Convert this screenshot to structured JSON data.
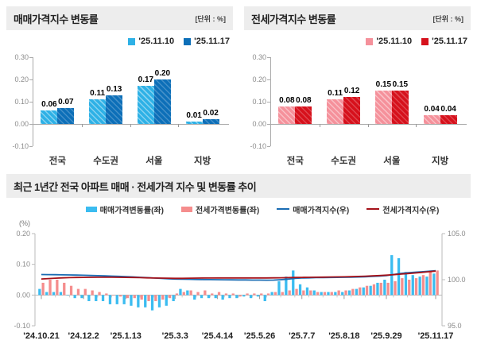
{
  "panels": {
    "sales": {
      "title": "매매가격지수 변동률",
      "unit": "[단위 : %]",
      "legend": [
        {
          "label": "'25.11.10",
          "color": "#2eb1e6"
        },
        {
          "label": "'25.11.17",
          "color": "#0d6fb8"
        }
      ]
    },
    "jeonse": {
      "title": "전세가격지수 변동률",
      "unit": "[단위 : %]",
      "legend": [
        {
          "label": "'25.11.10",
          "color": "#f5919b"
        },
        {
          "label": "'25.11.17",
          "color": "#d6111c"
        }
      ]
    },
    "trend": {
      "title": "최근 1년간 전국 아파트 매매 · 전세가격 지수 및 변동률 추이",
      "legend": [
        {
          "label": "매매가격변동률(좌)",
          "color": "#3bbcf0",
          "type": "bar"
        },
        {
          "label": "전세가격변동률(좌)",
          "color": "#f58d8d",
          "type": "bar"
        },
        {
          "label": "매매가격지수(우)",
          "color": "#1a6cb3",
          "type": "line"
        },
        {
          "label": "전세가격지수(우)",
          "color": "#a5121a",
          "type": "line"
        }
      ]
    }
  },
  "chart_data": [
    {
      "id": "sales-bars",
      "type": "bar",
      "title": "매매가격지수 변동률",
      "categories": [
        "전국",
        "수도권",
        "서울",
        "지방"
      ],
      "series": [
        {
          "name": "'25.11.10",
          "color": "#2eb1e6",
          "values": [
            0.06,
            0.11,
            0.17,
            0.01
          ]
        },
        {
          "name": "'25.11.17",
          "color": "#0d6fb8",
          "values": [
            0.07,
            0.13,
            0.2,
            0.02
          ]
        }
      ],
      "yticks": [
        0.3,
        0.2,
        0.1,
        0.0,
        -0.1
      ],
      "ylim": [
        -0.1,
        0.3
      ],
      "grid": false,
      "legend_position": "top-right"
    },
    {
      "id": "jeonse-bars",
      "type": "bar",
      "title": "전세가격지수 변동률",
      "categories": [
        "전국",
        "수도권",
        "서울",
        "지방"
      ],
      "series": [
        {
          "name": "'25.11.10",
          "color": "#f5919b",
          "values": [
            0.08,
            0.11,
            0.15,
            0.04
          ]
        },
        {
          "name": "'25.11.17",
          "color": "#d6111c",
          "values": [
            0.08,
            0.12,
            0.15,
            0.04
          ]
        }
      ],
      "yticks": [
        0.3,
        0.2,
        0.1,
        0.0,
        -0.1
      ],
      "ylim": [
        -0.1,
        0.3
      ],
      "grid": false,
      "legend_position": "top-right"
    },
    {
      "id": "trend-combo",
      "type": "combo",
      "title": "최근 1년간 전국 아파트 매매 · 전세가격 지수 및 변동률 추이",
      "n_points": 57,
      "x_tick_labels": [
        "'24.10.21",
        "'24.12.2",
        "'25.1.13",
        "'25.3.3",
        "'25.4.14",
        "'25.5.26",
        "'25.7.7",
        "'25.8.18",
        "'25.9.29",
        "'25.11.17"
      ],
      "x_tick_indices": [
        0,
        6,
        12,
        19,
        25,
        31,
        37,
        43,
        49,
        56
      ],
      "left_axis": {
        "unit": "(%)",
        "ticks": [
          0.2,
          0.1,
          0.0,
          -0.1
        ],
        "lim": [
          -0.1,
          0.2
        ]
      },
      "right_axis": {
        "ticks": [
          105.0,
          100.0,
          95.0
        ],
        "lim": [
          95.0,
          105.0
        ]
      },
      "bar_series": [
        {
          "name": "매매가격변동률(좌)",
          "axis": "left",
          "color": "#3bbcf0",
          "values": [
            0.02,
            0.01,
            0.01,
            0.01,
            0.0,
            -0.01,
            -0.01,
            -0.02,
            -0.02,
            -0.02,
            -0.03,
            -0.03,
            -0.03,
            -0.035,
            -0.04,
            -0.04,
            -0.05,
            -0.04,
            -0.035,
            -0.02,
            0.02,
            0.015,
            -0.015,
            -0.01,
            -0.01,
            -0.01,
            -0.015,
            -0.01,
            -0.01,
            -0.005,
            -0.01,
            -0.005,
            -0.02,
            0.01,
            0.045,
            0.06,
            0.08,
            0.035,
            0.025,
            0.015,
            0.01,
            0.01,
            0.01,
            0.01,
            0.015,
            0.02,
            0.025,
            0.03,
            0.04,
            0.05,
            0.13,
            0.12,
            0.075,
            0.065,
            0.06,
            0.06,
            0.07
          ]
        },
        {
          "name": "전세가격변동률(좌)",
          "axis": "left",
          "color": "#f58d8d",
          "values": [
            0.04,
            0.05,
            0.05,
            0.04,
            0.03,
            0.02,
            0.02,
            0.015,
            0.01,
            0.005,
            0.0,
            -0.005,
            -0.01,
            -0.01,
            -0.015,
            -0.02,
            -0.02,
            -0.015,
            -0.01,
            0.005,
            0.01,
            0.015,
            0.01,
            0.015,
            0.005,
            0.01,
            0.005,
            0.005,
            -0.005,
            0.005,
            0.005,
            0.005,
            0.005,
            0.01,
            0.01,
            0.015,
            0.02,
            0.015,
            0.015,
            0.01,
            0.01,
            0.01,
            0.015,
            0.015,
            0.02,
            0.025,
            0.03,
            0.035,
            0.04,
            0.04,
            0.045,
            0.055,
            0.05,
            0.055,
            0.065,
            0.08,
            0.08
          ]
        }
      ],
      "line_series": [
        {
          "name": "매매가격지수(우)",
          "axis": "right",
          "color": "#1a6cb3",
          "values": [
            100.56,
            100.55,
            100.54,
            100.53,
            100.52,
            100.5,
            100.48,
            100.46,
            100.44,
            100.42,
            100.39,
            100.36,
            100.33,
            100.3,
            100.26,
            100.22,
            100.18,
            100.14,
            100.1,
            100.07,
            100.05,
            100.04,
            100.03,
            100.02,
            100.01,
            100.0,
            99.99,
            99.98,
            99.97,
            99.97,
            99.96,
            99.96,
            99.95,
            99.96,
            100.0,
            100.06,
            100.14,
            100.18,
            100.2,
            100.22,
            100.23,
            100.24,
            100.25,
            100.26,
            100.27,
            100.29,
            100.32,
            100.35,
            100.39,
            100.44,
            100.56,
            100.68,
            100.75,
            100.81,
            100.86,
            100.91,
            100.98
          ]
        },
        {
          "name": "전세가격지수(우)",
          "axis": "right",
          "color": "#a5121a",
          "values": [
            100.08,
            100.12,
            100.16,
            100.2,
            100.22,
            100.24,
            100.25,
            100.26,
            100.27,
            100.27,
            100.27,
            100.26,
            100.25,
            100.24,
            100.22,
            100.2,
            100.18,
            100.17,
            100.16,
            100.15,
            100.15,
            100.16,
            100.17,
            100.18,
            100.18,
            100.19,
            100.19,
            100.19,
            100.19,
            100.19,
            100.19,
            100.19,
            100.19,
            100.2,
            100.21,
            100.22,
            100.24,
            100.25,
            100.26,
            100.27,
            100.28,
            100.29,
            100.3,
            100.31,
            100.33,
            100.35,
            100.38,
            100.41,
            100.45,
            100.49,
            100.54,
            100.6,
            100.66,
            100.72,
            100.79,
            100.86,
            100.93
          ]
        }
      ]
    }
  ]
}
